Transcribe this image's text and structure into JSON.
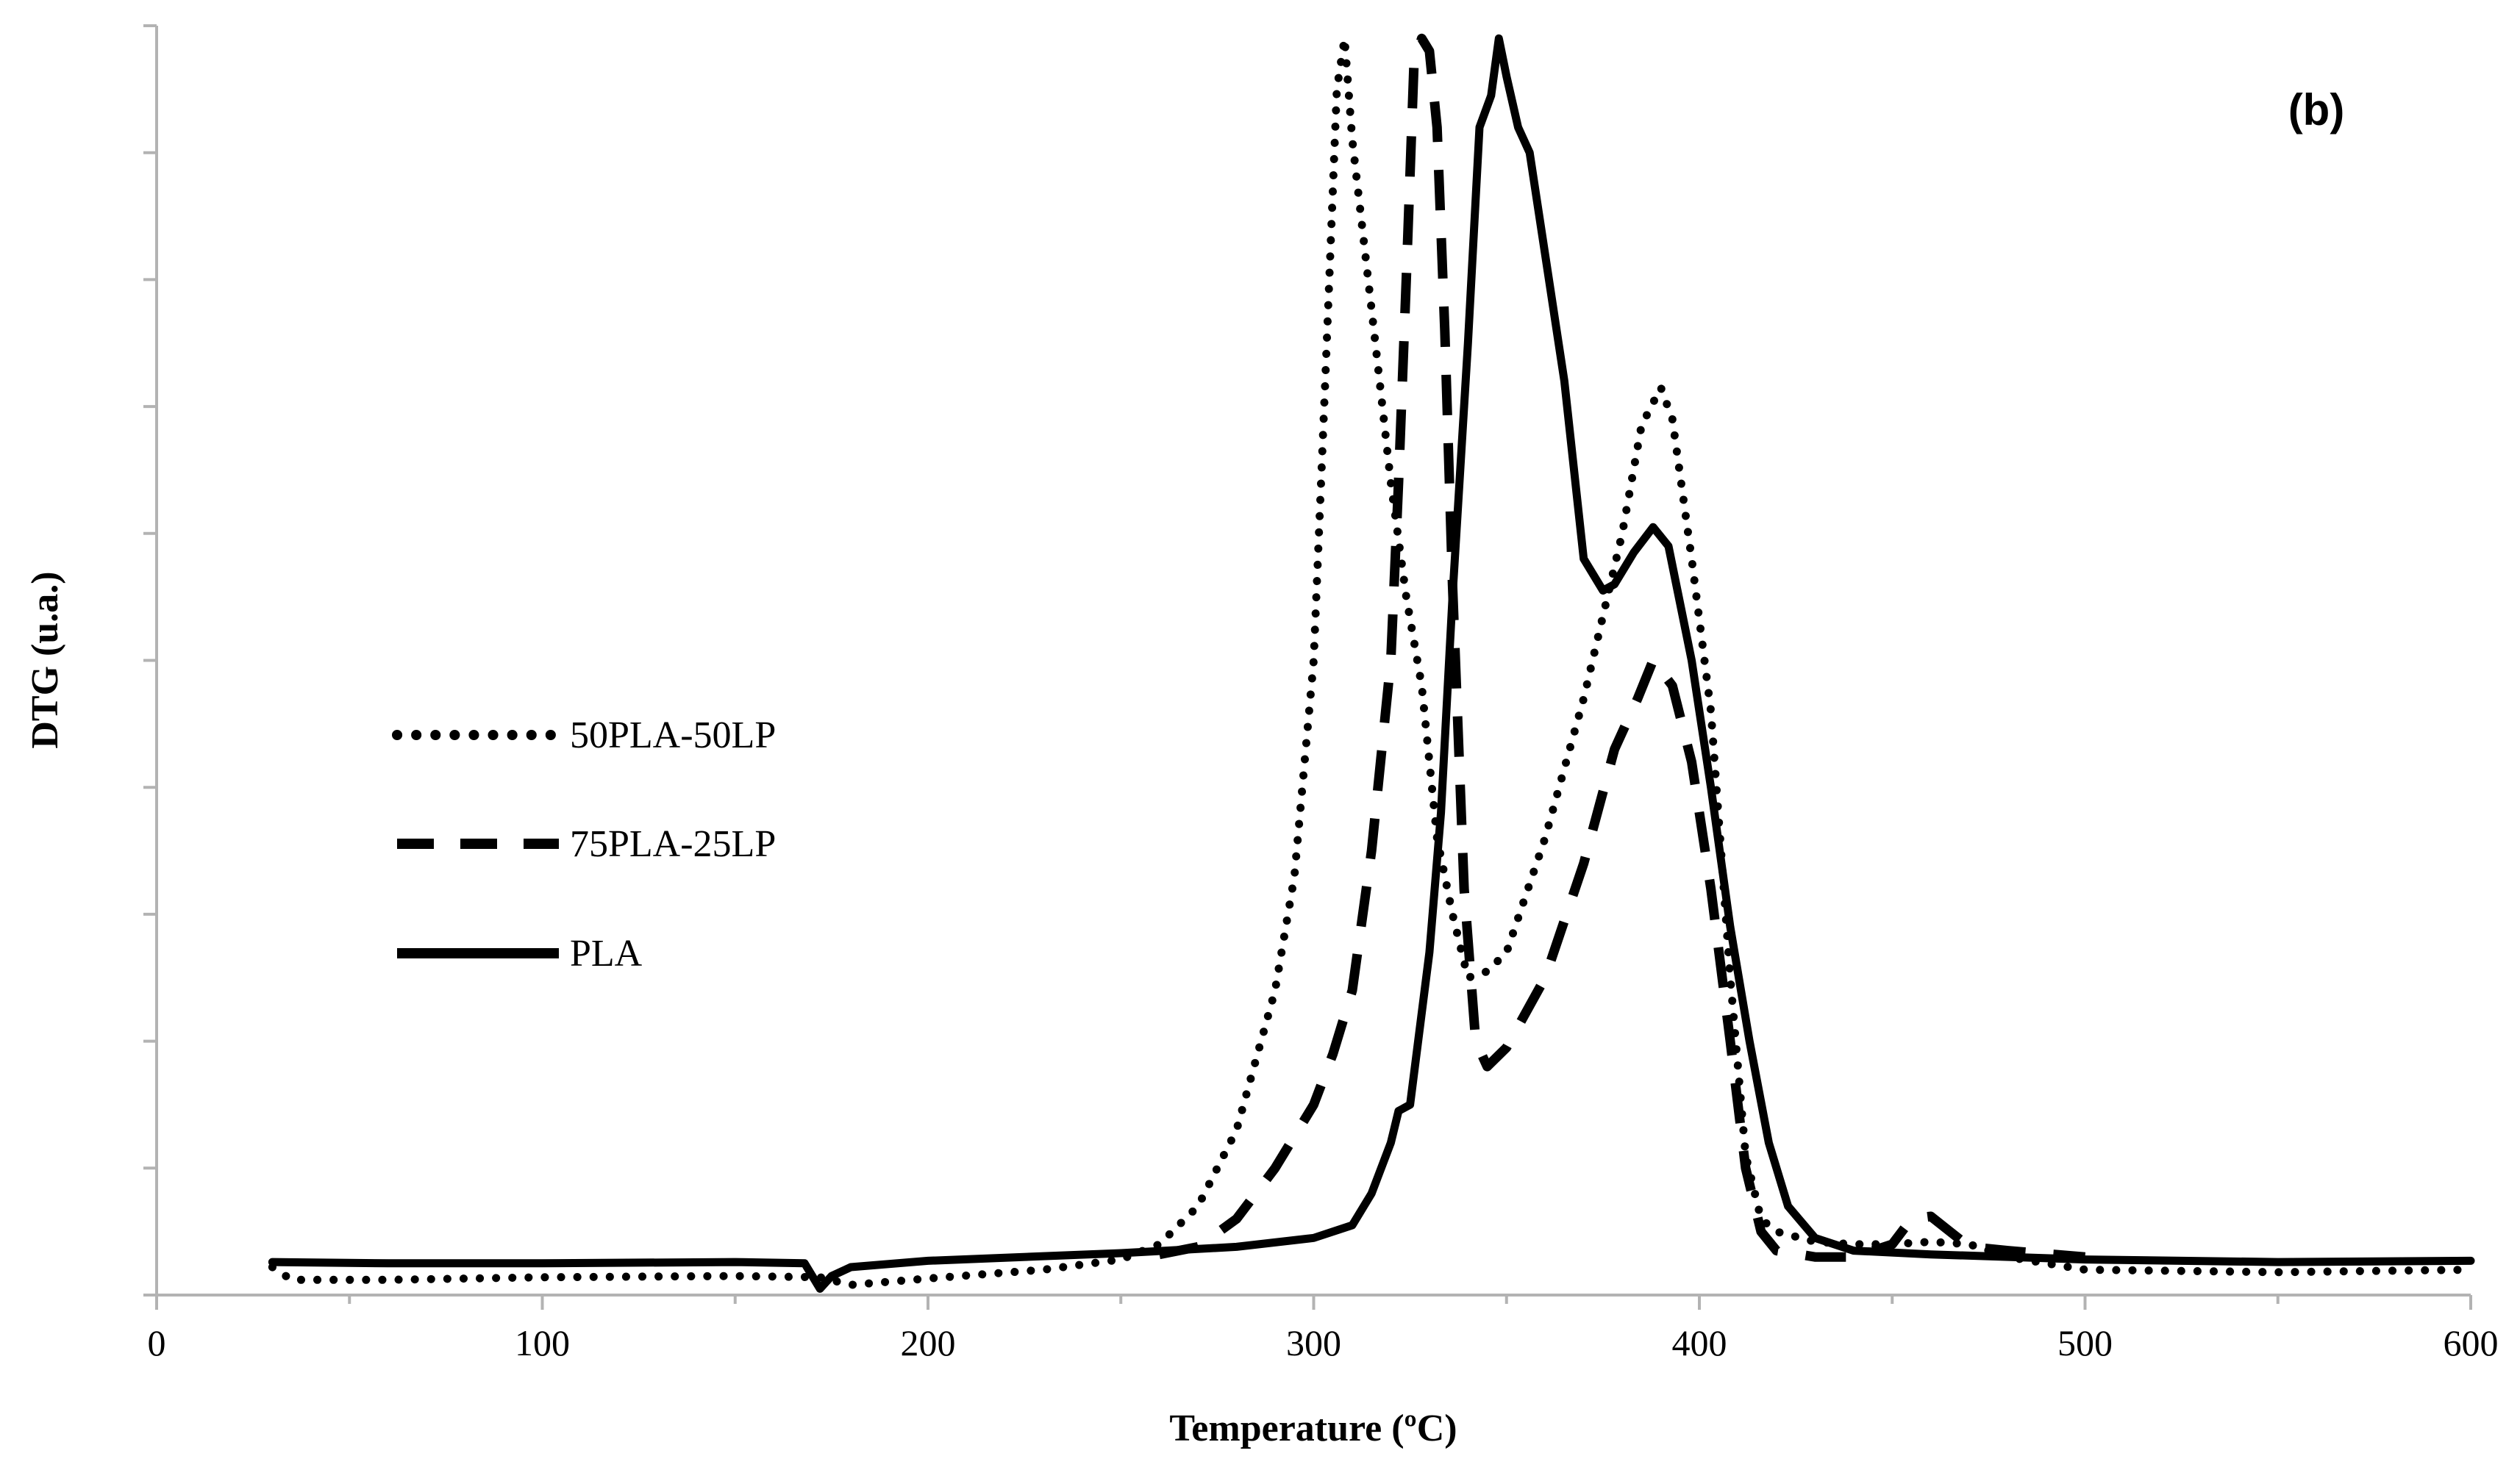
{
  "chart_data": {
    "type": "line",
    "panel_label": "(b)",
    "xlabel": "Temperature (ºC)",
    "ylabel": "DTG (u.a.)",
    "xlim": [
      0,
      600
    ],
    "ylim": [
      0,
      10
    ],
    "x_ticks": [
      "0",
      "100",
      "200",
      "300",
      "400",
      "500",
      "600"
    ],
    "x_tick_values": [
      0,
      100,
      200,
      300,
      400,
      500,
      600
    ],
    "grid": false,
    "legend_position": "center-left",
    "series": [
      {
        "name": "50PLA-50LP",
        "style": "dotted",
        "points": [
          [
            30,
            0.22
          ],
          [
            35,
            0.12
          ],
          [
            60,
            0.12
          ],
          [
            100,
            0.14
          ],
          [
            150,
            0.15
          ],
          [
            172,
            0.14
          ],
          [
            180,
            0.08
          ],
          [
            200,
            0.13
          ],
          [
            230,
            0.2
          ],
          [
            250,
            0.28
          ],
          [
            260,
            0.4
          ],
          [
            270,
            0.7
          ],
          [
            280,
            1.3
          ],
          [
            290,
            2.4
          ],
          [
            295,
            3.3
          ],
          [
            300,
            5.0
          ],
          [
            303,
            7.2
          ],
          [
            306,
            9.5
          ],
          [
            308,
            9.9
          ],
          [
            310,
            9.1
          ],
          [
            313,
            8.3
          ],
          [
            316,
            7.5
          ],
          [
            320,
            6.4
          ],
          [
            324,
            5.5
          ],
          [
            328,
            4.8
          ],
          [
            332,
            3.6
          ],
          [
            336,
            3.0
          ],
          [
            340,
            2.5
          ],
          [
            345,
            2.55
          ],
          [
            350,
            2.7
          ],
          [
            360,
            3.6
          ],
          [
            370,
            4.7
          ],
          [
            380,
            6.0
          ],
          [
            385,
            6.85
          ],
          [
            390,
            7.15
          ],
          [
            393,
            6.9
          ],
          [
            398,
            5.8
          ],
          [
            403,
            4.6
          ],
          [
            408,
            2.5
          ],
          [
            412,
            1.1
          ],
          [
            416,
            0.6
          ],
          [
            420,
            0.5
          ],
          [
            430,
            0.42
          ],
          [
            440,
            0.4
          ],
          [
            450,
            0.4
          ],
          [
            460,
            0.42
          ],
          [
            470,
            0.4
          ],
          [
            480,
            0.3
          ],
          [
            500,
            0.2
          ],
          [
            550,
            0.18
          ],
          [
            600,
            0.2
          ]
        ]
      },
      {
        "name": "75PLA-25LP",
        "style": "dashed",
        "points": [
          [
            260,
            0.32
          ],
          [
            270,
            0.38
          ],
          [
            280,
            0.6
          ],
          [
            290,
            1.0
          ],
          [
            300,
            1.5
          ],
          [
            305,
            1.9
          ],
          [
            310,
            2.4
          ],
          [
            315,
            3.5
          ],
          [
            320,
            5.0
          ],
          [
            322,
            6.4
          ],
          [
            324,
            8.0
          ],
          [
            326,
            9.7
          ],
          [
            328,
            9.9
          ],
          [
            330,
            9.8
          ],
          [
            332,
            9.2
          ],
          [
            334,
            7.6
          ],
          [
            336,
            5.6
          ],
          [
            339,
            3.2
          ],
          [
            342,
            2.0
          ],
          [
            345,
            1.8
          ],
          [
            350,
            1.95
          ],
          [
            360,
            2.5
          ],
          [
            370,
            3.4
          ],
          [
            378,
            4.3
          ],
          [
            384,
            4.7
          ],
          [
            388,
            5.0
          ],
          [
            393,
            4.8
          ],
          [
            398,
            4.2
          ],
          [
            403,
            3.2
          ],
          [
            408,
            2.0
          ],
          [
            412,
            1.0
          ],
          [
            416,
            0.5
          ],
          [
            420,
            0.35
          ],
          [
            430,
            0.3
          ],
          [
            440,
            0.3
          ],
          [
            450,
            0.4
          ],
          [
            455,
            0.6
          ],
          [
            460,
            0.62
          ],
          [
            465,
            0.5
          ],
          [
            470,
            0.38
          ],
          [
            480,
            0.35
          ],
          [
            500,
            0.3
          ]
        ]
      },
      {
        "name": "PLA",
        "style": "solid",
        "points": [
          [
            30,
            0.26
          ],
          [
            60,
            0.25
          ],
          [
            100,
            0.25
          ],
          [
            150,
            0.26
          ],
          [
            168,
            0.25
          ],
          [
            172,
            0.05
          ],
          [
            175,
            0.15
          ],
          [
            180,
            0.22
          ],
          [
            200,
            0.27
          ],
          [
            250,
            0.33
          ],
          [
            280,
            0.38
          ],
          [
            300,
            0.45
          ],
          [
            310,
            0.55
          ],
          [
            315,
            0.8
          ],
          [
            320,
            1.2
          ],
          [
            322,
            1.45
          ],
          [
            325,
            1.5
          ],
          [
            330,
            2.7
          ],
          [
            333,
            3.8
          ],
          [
            336,
            5.5
          ],
          [
            340,
            7.5
          ],
          [
            343,
            9.2
          ],
          [
            346,
            9.45
          ],
          [
            348,
            9.9
          ],
          [
            350,
            9.6
          ],
          [
            353,
            9.2
          ],
          [
            356,
            9.0
          ],
          [
            360,
            8.2
          ],
          [
            365,
            7.2
          ],
          [
            370,
            5.8
          ],
          [
            375,
            5.55
          ],
          [
            378,
            5.6
          ],
          [
            383,
            5.85
          ],
          [
            388,
            6.05
          ],
          [
            392,
            5.9
          ],
          [
            398,
            5.0
          ],
          [
            403,
            4.0
          ],
          [
            408,
            2.9
          ],
          [
            413,
            2.0
          ],
          [
            418,
            1.2
          ],
          [
            423,
            0.7
          ],
          [
            430,
            0.45
          ],
          [
            440,
            0.35
          ],
          [
            460,
            0.32
          ],
          [
            500,
            0.28
          ],
          [
            550,
            0.26
          ],
          [
            600,
            0.27
          ]
        ]
      }
    ]
  }
}
